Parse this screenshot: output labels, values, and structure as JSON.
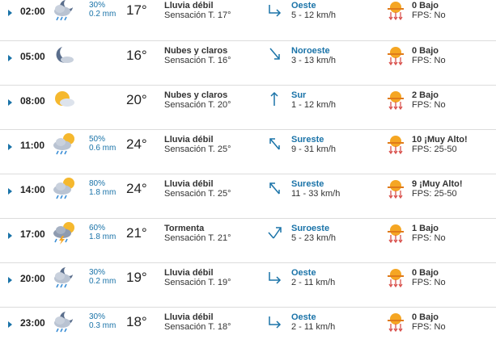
{
  "colors": {
    "accent": "#1a73a8",
    "sun": "#f5a623",
    "uv_arrow": "#d9534f"
  },
  "rows": [
    {
      "time": "02:00",
      "icon": "moon-cloud-rain-icon",
      "precip_prob": "30%",
      "precip_amount": "0.2 mm",
      "temp": "17°",
      "condition": "Lluvia débil",
      "feels": "Sensación T. 17°",
      "wind_icon": "wind-arrow-icon",
      "wind_dir": "Oeste",
      "wind_speed": "5 - 12 km/h",
      "uv_level": "0 Bajo",
      "fps": "FPS: No"
    },
    {
      "time": "05:00",
      "icon": "moon-cloud-icon",
      "precip_prob": "",
      "precip_amount": "",
      "temp": "16°",
      "condition": "Nubes y claros",
      "feels": "Sensación T. 16°",
      "wind_icon": "wind-arrow-icon",
      "wind_dir": "Noroeste",
      "wind_speed": "3 - 13 km/h",
      "uv_level": "0 Bajo",
      "fps": "FPS: No"
    },
    {
      "time": "08:00",
      "icon": "sun-cloud-icon",
      "precip_prob": "",
      "precip_amount": "",
      "temp": "20°",
      "condition": "Nubes y claros",
      "feels": "Sensación T. 20°",
      "wind_icon": "wind-arrow-icon",
      "wind_dir": "Sur",
      "wind_speed": "1 - 12 km/h",
      "uv_level": "2 Bajo",
      "fps": "FPS: No"
    },
    {
      "time": "11:00",
      "icon": "sun-cloud-rain-icon",
      "precip_prob": "50%",
      "precip_amount": "0.6 mm",
      "temp": "24°",
      "condition": "Lluvia débil",
      "feels": "Sensación T. 25°",
      "wind_icon": "wind-arrow-icon",
      "wind_dir": "Sureste",
      "wind_speed": "9 - 31 km/h",
      "uv_level": "10 ¡Muy Alto!",
      "fps": "FPS: 25-50"
    },
    {
      "time": "14:00",
      "icon": "sun-cloud-rain-icon",
      "precip_prob": "80%",
      "precip_amount": "1.8 mm",
      "temp": "24°",
      "condition": "Lluvia débil",
      "feels": "Sensación T. 25°",
      "wind_icon": "wind-arrow-icon",
      "wind_dir": "Sureste",
      "wind_speed": "11 - 33 km/h",
      "uv_level": "9 ¡Muy Alto!",
      "fps": "FPS: 25-50"
    },
    {
      "time": "17:00",
      "icon": "storm-icon",
      "precip_prob": "60%",
      "precip_amount": "1.8 mm",
      "temp": "21°",
      "condition": "Tormenta",
      "feels": "Sensación T. 21°",
      "wind_icon": "wind-arrow-icon",
      "wind_dir": "Suroeste",
      "wind_speed": "5 - 23 km/h",
      "uv_level": "1 Bajo",
      "fps": "FPS: No"
    },
    {
      "time": "20:00",
      "icon": "moon-cloud-rain-icon",
      "precip_prob": "30%",
      "precip_amount": "0.2 mm",
      "temp": "19°",
      "condition": "Lluvia débil",
      "feels": "Sensación T. 19°",
      "wind_icon": "wind-arrow-icon",
      "wind_dir": "Oeste",
      "wind_speed": "2 - 11 km/h",
      "uv_level": "0 Bajo",
      "fps": "FPS: No"
    },
    {
      "time": "23:00",
      "icon": "moon-cloud-rain-icon",
      "precip_prob": "30%",
      "precip_amount": "0.3 mm",
      "temp": "18°",
      "condition": "Lluvia débil",
      "feels": "Sensación T. 18°",
      "wind_icon": "wind-arrow-icon",
      "wind_dir": "Oeste",
      "wind_speed": "2 - 11 km/h",
      "uv_level": "0 Bajo",
      "fps": "FPS: No"
    }
  ]
}
